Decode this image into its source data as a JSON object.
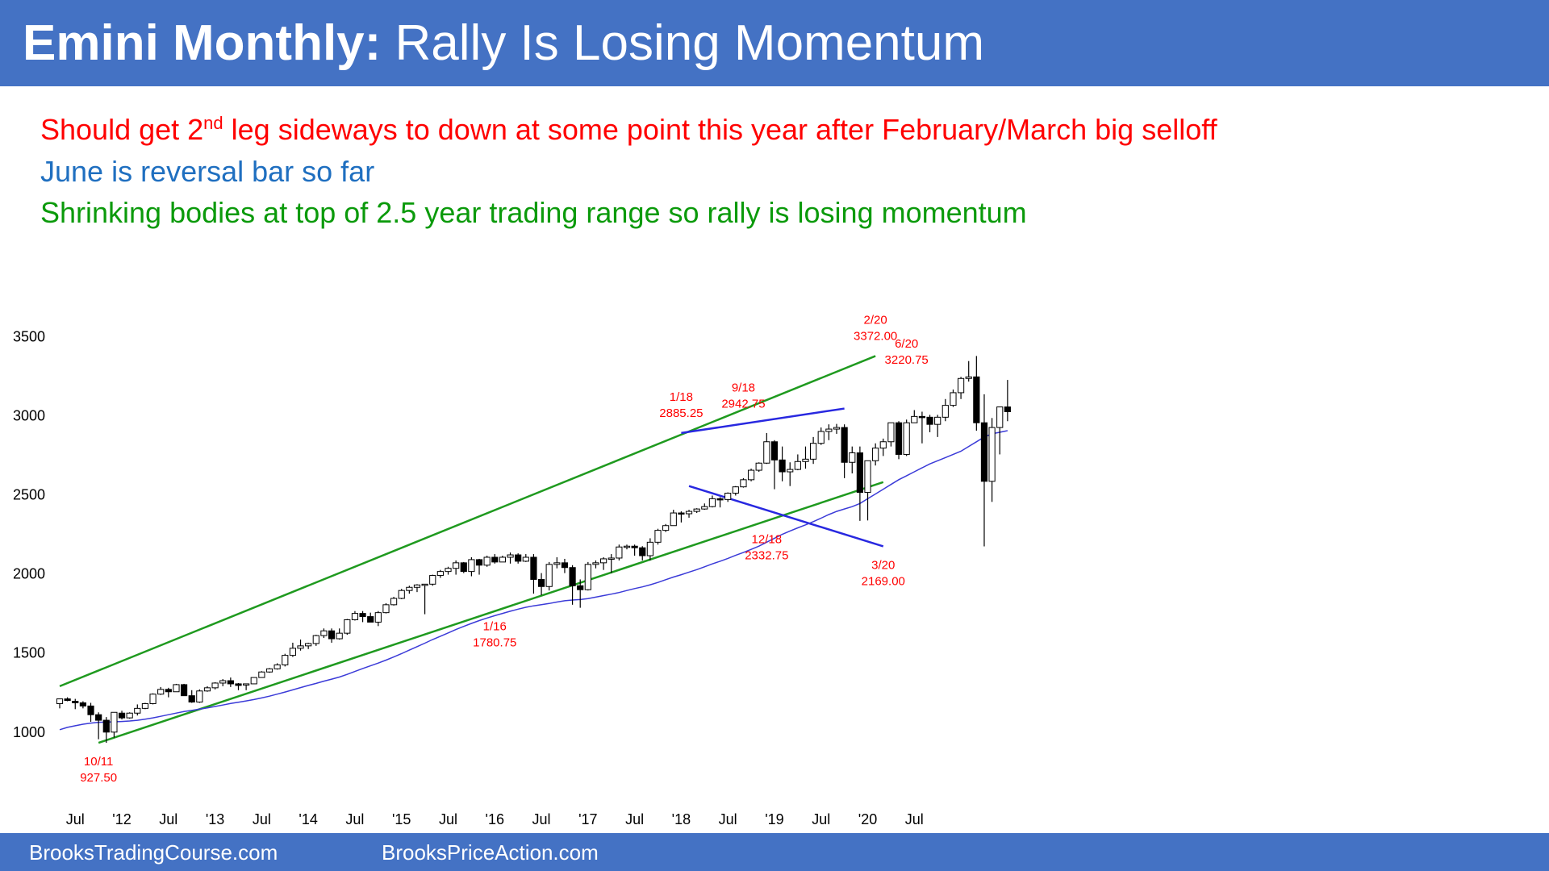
{
  "header": {
    "title_bold": "Emini Monthly:",
    "title_rest": " Rally Is Losing Momentum",
    "color": "#4472c4"
  },
  "notes": {
    "line1_a": "Should get 2",
    "line1_sup": "nd",
    "line1_b": " leg sideways to down at some point this year after February/March big selloff",
    "line2": "June is reversal bar so far",
    "line3": "Shrinking bodies at top of 2.5 year trading range so rally is losing momentum"
  },
  "footer": {
    "left": "BrooksTradingCourse.com",
    "right": "BrooksPriceAction.com"
  },
  "chart_data": {
    "type": "candlestick",
    "x_range": [
      "2011-05",
      "2020-07"
    ],
    "y_range": [
      750,
      3600
    ],
    "y_ticks": [
      1000,
      1500,
      2000,
      2500,
      3000,
      3500
    ],
    "x_ticks": [
      {
        "label": "Jul",
        "date": "2011-07"
      },
      {
        "label": "'12",
        "date": "2012-01"
      },
      {
        "label": "Jul",
        "date": "2012-07"
      },
      {
        "label": "'13",
        "date": "2013-01"
      },
      {
        "label": "Jul",
        "date": "2013-07"
      },
      {
        "label": "'14",
        "date": "2014-01"
      },
      {
        "label": "Jul",
        "date": "2014-07"
      },
      {
        "label": "'15",
        "date": "2015-01"
      },
      {
        "label": "Jul",
        "date": "2015-07"
      },
      {
        "label": "'16",
        "date": "2016-01"
      },
      {
        "label": "Jul",
        "date": "2016-07"
      },
      {
        "label": "'17",
        "date": "2017-01"
      },
      {
        "label": "Jul",
        "date": "2017-07"
      },
      {
        "label": "'18",
        "date": "2018-01"
      },
      {
        "label": "Jul",
        "date": "2018-07"
      },
      {
        "label": "'19",
        "date": "2019-01"
      },
      {
        "label": "Jul",
        "date": "2019-07"
      },
      {
        "label": "'20",
        "date": "2020-01"
      },
      {
        "label": "Jul",
        "date": "2020-07"
      }
    ],
    "ohlc": [
      [
        1175,
        1200,
        1145,
        1205
      ],
      [
        1205,
        1215,
        1190,
        1195
      ],
      [
        1190,
        1205,
        1140,
        1180
      ],
      [
        1180,
        1190,
        1145,
        1160
      ],
      [
        1160,
        1180,
        1060,
        1105
      ],
      [
        1105,
        1120,
        950,
        1070
      ],
      [
        1070,
        1090,
        927.5,
        995
      ],
      [
        995,
        1120,
        960,
        1120
      ],
      [
        1115,
        1130,
        1075,
        1085
      ],
      [
        1085,
        1120,
        1080,
        1115
      ],
      [
        1115,
        1170,
        1100,
        1145
      ],
      [
        1145,
        1180,
        1140,
        1175
      ],
      [
        1175,
        1240,
        1170,
        1235
      ],
      [
        1235,
        1280,
        1230,
        1265
      ],
      [
        1265,
        1275,
        1215,
        1250
      ],
      [
        1250,
        1300,
        1250,
        1295
      ],
      [
        1295,
        1300,
        1235,
        1225
      ],
      [
        1225,
        1260,
        1180,
        1185
      ],
      [
        1185,
        1265,
        1180,
        1255
      ],
      [
        1255,
        1285,
        1250,
        1275
      ],
      [
        1275,
        1310,
        1265,
        1305
      ],
      [
        1305,
        1330,
        1285,
        1320
      ],
      [
        1320,
        1340,
        1280,
        1300
      ],
      [
        1300,
        1305,
        1260,
        1290
      ],
      [
        1295,
        1300,
        1260,
        1300
      ],
      [
        1300,
        1340,
        1300,
        1340
      ],
      [
        1340,
        1380,
        1340,
        1375
      ],
      [
        1375,
        1400,
        1370,
        1395
      ],
      [
        1395,
        1430,
        1390,
        1420
      ],
      [
        1420,
        1490,
        1410,
        1480
      ],
      [
        1480,
        1560,
        1470,
        1525
      ],
      [
        1525,
        1580,
        1510,
        1540
      ],
      [
        1540,
        1560,
        1520,
        1555
      ],
      [
        1555,
        1610,
        1540,
        1605
      ],
      [
        1605,
        1650,
        1590,
        1635
      ],
      [
        1635,
        1650,
        1560,
        1585
      ],
      [
        1585,
        1650,
        1580,
        1620
      ],
      [
        1620,
        1710,
        1610,
        1705
      ],
      [
        1705,
        1760,
        1700,
        1745
      ],
      [
        1745,
        1760,
        1690,
        1725
      ],
      [
        1725,
        1750,
        1690,
        1690
      ],
      [
        1690,
        1760,
        1665,
        1750
      ],
      [
        1750,
        1810,
        1745,
        1800
      ],
      [
        1800,
        1850,
        1795,
        1840
      ],
      [
        1840,
        1900,
        1835,
        1890
      ],
      [
        1890,
        1920,
        1870,
        1910
      ],
      [
        1910,
        1930,
        1880,
        1925
      ],
      [
        1925,
        1930,
        1740,
        1930
      ],
      [
        1930,
        1990,
        1920,
        1985
      ],
      [
        1985,
        2020,
        1970,
        2010
      ],
      [
        2010,
        2040,
        1990,
        2030
      ],
      [
        2030,
        2080,
        1990,
        2065
      ],
      [
        2065,
        2070,
        2000,
        2010
      ],
      [
        2010,
        2100,
        1980,
        2085
      ],
      [
        2085,
        2090,
        1990,
        2050
      ],
      [
        2050,
        2110,
        2040,
        2100
      ],
      [
        2100,
        2120,
        2060,
        2070
      ],
      [
        2070,
        2110,
        2070,
        2100
      ],
      [
        2100,
        2130,
        2060,
        2115
      ],
      [
        2115,
        2125,
        2060,
        2075
      ],
      [
        2075,
        2120,
        2070,
        2100
      ],
      [
        2100,
        2120,
        1870,
        1960
      ],
      [
        1960,
        2000,
        1860,
        1915
      ],
      [
        1915,
        2070,
        1890,
        2055
      ],
      [
        2055,
        2100,
        2030,
        2065
      ],
      [
        2065,
        2090,
        2000,
        2035
      ],
      [
        2035,
        2050,
        1800,
        1920
      ],
      [
        1920,
        1960,
        1780.75,
        1895
      ],
      [
        1895,
        2070,
        1890,
        2055
      ],
      [
        2055,
        2080,
        2030,
        2065
      ],
      [
        2065,
        2100,
        2020,
        2090
      ],
      [
        2090,
        2120,
        2000,
        2095
      ],
      [
        2095,
        2180,
        2080,
        2165
      ],
      [
        2165,
        2180,
        2150,
        2170
      ],
      [
        2170,
        2180,
        2110,
        2160
      ],
      [
        2160,
        2170,
        2080,
        2110
      ],
      [
        2110,
        2220,
        2080,
        2195
      ],
      [
        2195,
        2280,
        2180,
        2270
      ],
      [
        2270,
        2310,
        2260,
        2300
      ],
      [
        2300,
        2400,
        2300,
        2380
      ],
      [
        2380,
        2390,
        2320,
        2375
      ],
      [
        2375,
        2400,
        2350,
        2390
      ],
      [
        2390,
        2410,
        2380,
        2405
      ],
      [
        2405,
        2440,
        2400,
        2420
      ],
      [
        2420,
        2490,
        2415,
        2470
      ],
      [
        2470,
        2480,
        2415,
        2465
      ],
      [
        2465,
        2510,
        2450,
        2505
      ],
      [
        2505,
        2550,
        2490,
        2545
      ],
      [
        2545,
        2600,
        2540,
        2590
      ],
      [
        2590,
        2660,
        2580,
        2650
      ],
      [
        2650,
        2700,
        2640,
        2695
      ],
      [
        2695,
        2885.25,
        2690,
        2830
      ],
      [
        2830,
        2840,
        2530,
        2715
      ],
      [
        2715,
        2800,
        2580,
        2640
      ],
      [
        2640,
        2700,
        2550,
        2655
      ],
      [
        2655,
        2750,
        2650,
        2705
      ],
      [
        2705,
        2800,
        2660,
        2720
      ],
      [
        2720,
        2860,
        2690,
        2820
      ],
      [
        2820,
        2920,
        2810,
        2895
      ],
      [
        2895,
        2940,
        2840,
        2910
      ],
      [
        2910,
        2942.75,
        2880,
        2920
      ],
      [
        2920,
        2940,
        2600,
        2700
      ],
      [
        2700,
        2800,
        2630,
        2760
      ],
      [
        2760,
        2800,
        2330,
        2510
      ],
      [
        2510,
        2710,
        2332.75,
        2710
      ],
      [
        2710,
        2820,
        2680,
        2790
      ],
      [
        2790,
        2850,
        2740,
        2830
      ],
      [
        2830,
        2950,
        2800,
        2950
      ],
      [
        2950,
        2960,
        2720,
        2750
      ],
      [
        2750,
        2970,
        2740,
        2950
      ],
      [
        2950,
        3030,
        2950,
        2990
      ],
      [
        2990,
        3020,
        2820,
        2985
      ],
      [
        2985,
        3000,
        2890,
        2940
      ],
      [
        2940,
        3000,
        2860,
        2985
      ],
      [
        2985,
        3100,
        2960,
        3060
      ],
      [
        3060,
        3160,
        3050,
        3140
      ],
      [
        3140,
        3240,
        3100,
        3230
      ],
      [
        3230,
        3340,
        3210,
        3240
      ],
      [
        3240,
        3372,
        2900,
        2950
      ],
      [
        2950,
        3130,
        2169,
        2580
      ],
      [
        2580,
        2980,
        2450,
        2920
      ],
      [
        2920,
        3030,
        2750,
        3050
      ],
      [
        3050,
        3220.75,
        2960,
        3020
      ]
    ],
    "moving_average": {
      "name": "20-month EMA",
      "color": "#3b3bd8",
      "values": [
        1010,
        1025,
        1035,
        1045,
        1052,
        1057,
        1058,
        1060,
        1062,
        1065,
        1070,
        1077,
        1085,
        1095,
        1105,
        1115,
        1125,
        1132,
        1140,
        1148,
        1157,
        1166,
        1176,
        1184,
        1192,
        1201,
        1211,
        1222,
        1235,
        1248,
        1262,
        1276,
        1290,
        1303,
        1317,
        1330,
        1343,
        1360,
        1378,
        1397,
        1414,
        1431,
        1450,
        1470,
        1491,
        1513,
        1535,
        1557,
        1580,
        1601,
        1622,
        1643,
        1663,
        1682,
        1700,
        1716,
        1731,
        1745,
        1759,
        1772,
        1784,
        1793,
        1800,
        1808,
        1817,
        1825,
        1830,
        1833,
        1839,
        1848,
        1858,
        1867,
        1877,
        1890,
        1902,
        1913,
        1926,
        1941,
        1958,
        1975,
        1990,
        2006,
        2022,
        2040,
        2058,
        2075,
        2093,
        2112,
        2130,
        2150,
        2170,
        2195,
        2220,
        2245,
        2266,
        2286,
        2305,
        2325,
        2347,
        2370,
        2390,
        2405,
        2420,
        2440,
        2470,
        2500,
        2530,
        2560,
        2590,
        2615,
        2640,
        2665,
        2690,
        2710,
        2730,
        2750,
        2770,
        2800,
        2830,
        2860,
        2880,
        2890,
        2900
      ]
    },
    "trend_lines": [
      {
        "name": "upper-channel-line",
        "color": "#1f9a1f",
        "from": [
          "2011-05",
          1285
        ],
        "to": [
          "2020-02",
          3372
        ]
      },
      {
        "name": "lower-channel-line",
        "color": "#1f9a1f",
        "from": [
          "2011-10",
          927.5
        ],
        "to": [
          "2020-03",
          2575
        ]
      },
      {
        "name": "triangle-upper-line",
        "color": "#2828e0",
        "from": [
          "2018-01",
          2885.25
        ],
        "to": [
          "2019-10",
          3040
        ]
      },
      {
        "name": "triangle-lower-line",
        "color": "#2828e0",
        "from": [
          "2018-02",
          2550
        ],
        "to": [
          "2020-03",
          2169
        ]
      }
    ],
    "annotations": [
      {
        "date": "2011-10",
        "value": 927.5,
        "position": "below",
        "label": "10/11",
        "price": "927.50"
      },
      {
        "date": "2016-01",
        "value": 1780.75,
        "position": "below",
        "label": "1/16",
        "price": "1780.75"
      },
      {
        "date": "2018-01",
        "value": 2885.25,
        "position": "above",
        "label": "1/18",
        "price": "2885.25"
      },
      {
        "date": "2018-09",
        "value": 2942.75,
        "position": "above",
        "label": "9/18",
        "price": "2942.75"
      },
      {
        "date": "2018-12",
        "value": 2332.75,
        "position": "below",
        "label": "12/18",
        "price": "2332.75"
      },
      {
        "date": "2020-02",
        "value": 3372,
        "position": "above",
        "label": "2/20",
        "price": "3372.00"
      },
      {
        "date": "2020-03",
        "value": 2169,
        "position": "below",
        "label": "3/20",
        "price": "2169.00"
      },
      {
        "date": "2020-06",
        "value": 3220.75,
        "position": "above",
        "label": "6/20",
        "price": "3220.75"
      }
    ],
    "colors": {
      "up_body": "#ffffff",
      "down_body": "#000000",
      "annotation": "#ff0000"
    }
  }
}
